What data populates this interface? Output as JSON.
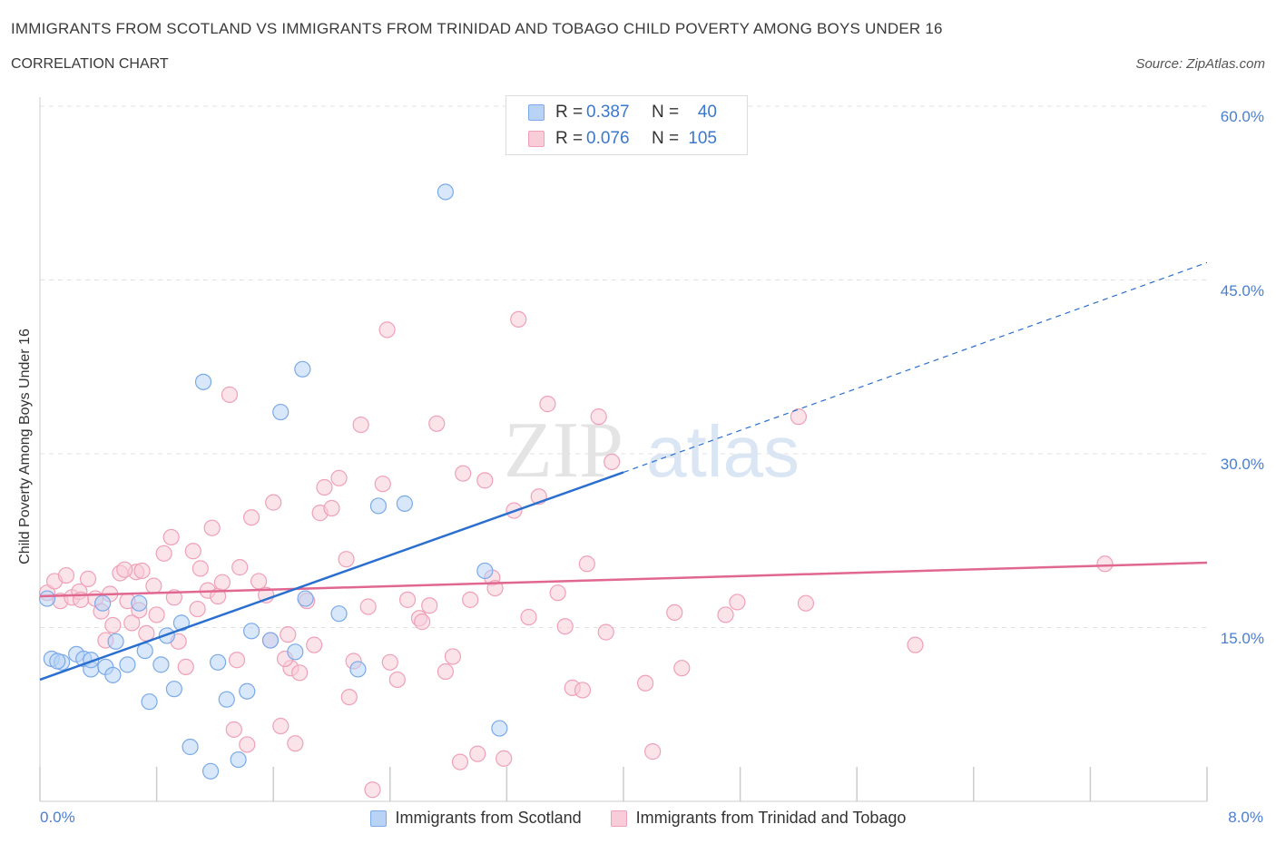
{
  "title": "IMMIGRANTS FROM SCOTLAND VS IMMIGRANTS FROM TRINIDAD AND TOBAGO CHILD POVERTY AMONG BOYS UNDER 16",
  "subtitle": "CORRELATION CHART",
  "source": "Source: ZipAtlas.com",
  "watermark": {
    "zip": "ZIP",
    "atlas": "atlas"
  },
  "legend": {
    "scotland": {
      "r_label": "R = ",
      "r_value": "0.387",
      "n_label": "N = ",
      "n_value": "40"
    },
    "trinidad": {
      "r_label": "R = ",
      "r_value": "0.076",
      "n_label": "N = ",
      "n_value": "105"
    }
  },
  "chart_data": {
    "type": "scatter",
    "xlabel": "",
    "ylabel": "Child Poverty Among Boys Under 16",
    "xlim": [
      0,
      8
    ],
    "ylim": [
      0,
      60
    ],
    "x_tick_labels": [
      {
        "value": 0,
        "label": "0.0%"
      },
      {
        "value": 8,
        "label": "8.0%"
      }
    ],
    "y_tick_labels": [
      {
        "value": 15,
        "label": "15.0%"
      },
      {
        "value": 30,
        "label": "30.0%"
      },
      {
        "value": 45,
        "label": "45.0%"
      },
      {
        "value": 60,
        "label": "60.0%"
      }
    ],
    "grid": true,
    "legend_position": "top-center",
    "series": [
      {
        "name": "Immigrants from Scotland",
        "color": "#7aaae8",
        "fill": "#b8d3f5",
        "trend": {
          "x0": 0,
          "y0": 10.5,
          "x1": 4.0,
          "y1": 28.4,
          "dash_to_x": 8,
          "dash_to_y": 46.5,
          "color": "#2a6fcf"
        },
        "points": [
          [
            0.05,
            17.5
          ],
          [
            0.08,
            12.3
          ],
          [
            0.15,
            12.0
          ],
          [
            0.25,
            12.7
          ],
          [
            0.3,
            12.3
          ],
          [
            0.35,
            11.4
          ],
          [
            0.45,
            11.6
          ],
          [
            0.5,
            10.9
          ],
          [
            0.6,
            11.8
          ],
          [
            0.43,
            17.1
          ],
          [
            0.52,
            13.8
          ],
          [
            0.68,
            17.1
          ],
          [
            0.72,
            13.0
          ],
          [
            0.75,
            8.6
          ],
          [
            0.83,
            11.8
          ],
          [
            0.87,
            14.3
          ],
          [
            0.92,
            9.7
          ],
          [
            0.97,
            15.4
          ],
          [
            1.03,
            4.7
          ],
          [
            1.12,
            36.2
          ],
          [
            1.17,
            2.6
          ],
          [
            1.22,
            12.0
          ],
          [
            1.28,
            8.8
          ],
          [
            1.36,
            3.6
          ],
          [
            1.42,
            9.5
          ],
          [
            1.45,
            14.7
          ],
          [
            1.58,
            13.9
          ],
          [
            1.65,
            33.6
          ],
          [
            1.75,
            12.9
          ],
          [
            1.8,
            37.3
          ],
          [
            1.82,
            17.5
          ],
          [
            2.05,
            16.2
          ],
          [
            2.18,
            11.4
          ],
          [
            2.32,
            25.5
          ],
          [
            2.5,
            25.7
          ],
          [
            2.78,
            52.6
          ],
          [
            3.05,
            19.9
          ],
          [
            3.15,
            6.3
          ],
          [
            0.12,
            12.1
          ],
          [
            0.35,
            12.2
          ]
        ]
      },
      {
        "name": "Immigrants from Trinidad and Tobago",
        "color": "#f0a0b8",
        "fill": "#f8ccd9",
        "trend": {
          "x0": 0,
          "y0": 17.7,
          "x1": 8,
          "y1": 20.6,
          "color": "#e06890"
        },
        "points": [
          [
            0.05,
            18.0
          ],
          [
            0.1,
            19.0
          ],
          [
            0.14,
            17.3
          ],
          [
            0.18,
            19.5
          ],
          [
            0.22,
            17.6
          ],
          [
            0.27,
            18.1
          ],
          [
            0.33,
            19.2
          ],
          [
            0.38,
            17.5
          ],
          [
            0.42,
            16.4
          ],
          [
            0.45,
            13.9
          ],
          [
            0.5,
            15.2
          ],
          [
            0.55,
            19.7
          ],
          [
            0.6,
            17.3
          ],
          [
            0.63,
            15.4
          ],
          [
            0.66,
            19.8
          ],
          [
            0.7,
            19.9
          ],
          [
            0.73,
            14.5
          ],
          [
            0.78,
            18.6
          ],
          [
            0.8,
            16.1
          ],
          [
            0.85,
            21.4
          ],
          [
            0.9,
            22.8
          ],
          [
            0.95,
            13.8
          ],
          [
            1.0,
            11.6
          ],
          [
            1.05,
            21.6
          ],
          [
            1.1,
            20.1
          ],
          [
            1.15,
            18.2
          ],
          [
            1.18,
            23.6
          ],
          [
            1.22,
            17.7
          ],
          [
            1.25,
            18.9
          ],
          [
            1.3,
            35.1
          ],
          [
            1.33,
            6.2
          ],
          [
            1.37,
            20.2
          ],
          [
            1.42,
            4.9
          ],
          [
            1.45,
            24.5
          ],
          [
            1.5,
            19.0
          ],
          [
            1.55,
            17.8
          ],
          [
            1.6,
            25.8
          ],
          [
            1.65,
            6.5
          ],
          [
            1.7,
            14.4
          ],
          [
            1.72,
            11.5
          ],
          [
            1.75,
            5.0
          ],
          [
            1.78,
            11.1
          ],
          [
            1.83,
            17.3
          ],
          [
            1.88,
            13.5
          ],
          [
            1.92,
            24.9
          ],
          [
            1.95,
            27.1
          ],
          [
            2.0,
            25.3
          ],
          [
            2.05,
            27.9
          ],
          [
            2.1,
            20.9
          ],
          [
            2.15,
            12.1
          ],
          [
            2.2,
            32.5
          ],
          [
            2.25,
            16.8
          ],
          [
            2.35,
            27.4
          ],
          [
            2.38,
            40.7
          ],
          [
            2.45,
            10.5
          ],
          [
            2.52,
            17.4
          ],
          [
            2.6,
            15.8
          ],
          [
            2.67,
            16.9
          ],
          [
            2.72,
            32.6
          ],
          [
            2.78,
            11.2
          ],
          [
            2.83,
            12.5
          ],
          [
            2.88,
            3.4
          ],
          [
            2.9,
            28.3
          ],
          [
            2.95,
            17.4
          ],
          [
            3.0,
            4.1
          ],
          [
            3.05,
            27.7
          ],
          [
            3.1,
            19.3
          ],
          [
            3.18,
            3.7
          ],
          [
            3.25,
            25.1
          ],
          [
            3.28,
            41.6
          ],
          [
            3.35,
            15.9
          ],
          [
            3.42,
            26.3
          ],
          [
            3.48,
            34.3
          ],
          [
            3.55,
            18.0
          ],
          [
            3.6,
            15.1
          ],
          [
            3.65,
            9.8
          ],
          [
            3.72,
            9.6
          ],
          [
            3.83,
            33.2
          ],
          [
            3.88,
            14.6
          ],
          [
            3.92,
            29.3
          ],
          [
            4.15,
            10.2
          ],
          [
            4.2,
            4.3
          ],
          [
            4.35,
            16.3
          ],
          [
            4.7,
            16.1
          ],
          [
            4.78,
            17.2
          ],
          [
            5.2,
            33.2
          ],
          [
            5.25,
            17.1
          ],
          [
            6.0,
            13.5
          ],
          [
            7.3,
            20.5
          ],
          [
            0.28,
            17.4
          ],
          [
            0.48,
            17.9
          ],
          [
            0.58,
            20.0
          ],
          [
            0.68,
            16.5
          ],
          [
            0.92,
            17.6
          ],
          [
            1.08,
            16.6
          ],
          [
            1.35,
            12.2
          ],
          [
            1.58,
            13.9
          ],
          [
            1.68,
            12.3
          ],
          [
            2.12,
            9.0
          ],
          [
            2.4,
            12.0
          ],
          [
            2.62,
            15.5
          ],
          [
            3.12,
            18.4
          ],
          [
            3.75,
            20.5
          ],
          [
            4.4,
            11.5
          ],
          [
            2.28,
            1.0
          ]
        ]
      }
    ]
  }
}
